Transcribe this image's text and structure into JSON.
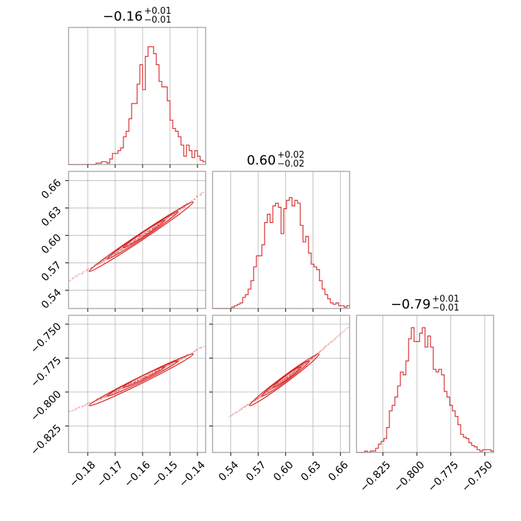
{
  "colors": {
    "accent": "#d62728",
    "grid": "#b0b0b0",
    "frame": "#808080",
    "background": "#ffffff"
  },
  "chart_data": {
    "type": "corner",
    "parameters": [
      {
        "title_value": "−0.16",
        "title_plus": "+0.01",
        "title_minus": "−0.01",
        "median": -0.16,
        "err_plus": 0.01,
        "err_minus": 0.01,
        "range": [
          -0.187,
          -0.137
        ],
        "ticks": [
          -0.18,
          -0.17,
          -0.16,
          -0.15,
          -0.14
        ],
        "tick_labels": [
          "−0.18",
          "−0.17",
          "−0.16",
          "−0.15",
          "−0.14"
        ],
        "hist_edges": [
          -0.187,
          -0.137
        ],
        "hist": [
          0,
          0,
          0,
          0,
          0,
          0,
          0,
          0,
          0,
          0,
          0.01,
          0.01,
          0.02,
          0.02,
          0.01,
          0.04,
          0.08,
          0.08,
          0.1,
          0.12,
          0.2,
          0.24,
          0.33,
          0.44,
          0.44,
          0.58,
          0.72,
          0.54,
          0.78,
          0.85,
          0.85,
          0.8,
          0.72,
          0.6,
          0.56,
          0.56,
          0.46,
          0.32,
          0.26,
          0.24,
          0.2,
          0.14,
          0.06,
          0.14,
          0.1,
          0.05,
          0.1,
          0.06,
          0.03,
          0.02
        ]
      },
      {
        "title_value": "0.60",
        "title_plus": "+0.02",
        "title_minus": "−0.02",
        "median": 0.6,
        "err_plus": 0.02,
        "err_minus": 0.02,
        "range": [
          0.52,
          0.67
        ],
        "ticks": [
          0.54,
          0.57,
          0.6,
          0.63,
          0.66
        ],
        "tick_labels": [
          "0.54",
          "0.57",
          "0.60",
          "0.63",
          "0.66"
        ],
        "hist": [
          0,
          0,
          0,
          0,
          0,
          0,
          0,
          0.01,
          0.02,
          0.03,
          0.04,
          0.08,
          0.1,
          0.14,
          0.2,
          0.3,
          0.38,
          0.38,
          0.46,
          0.62,
          0.68,
          0.62,
          0.74,
          0.76,
          0.73,
          0.54,
          0.72,
          0.78,
          0.8,
          0.74,
          0.78,
          0.76,
          0.6,
          0.48,
          0.52,
          0.4,
          0.32,
          0.3,
          0.28,
          0.2,
          0.14,
          0.1,
          0.07,
          0.04,
          0.03,
          0.04,
          0.02,
          0.02,
          0.01,
          0.02
        ]
      },
      {
        "title_value": "−0.79",
        "title_plus": "+0.01",
        "title_minus": "−0.01",
        "median": -0.79,
        "err_plus": 0.01,
        "err_minus": 0.01,
        "range": [
          -0.8445,
          -0.7435
        ],
        "ticks": [
          -0.825,
          -0.8,
          -0.775,
          -0.75
        ],
        "tick_labels": [
          "−0.825",
          "−0.800",
          "−0.775",
          "−0.750"
        ],
        "hist": [
          0,
          0,
          0,
          0.01,
          0,
          0.01,
          0.01,
          0.03,
          0.06,
          0.08,
          0.1,
          0.18,
          0.3,
          0.34,
          0.4,
          0.48,
          0.58,
          0.56,
          0.66,
          0.82,
          0.9,
          0.8,
          0.8,
          0.86,
          0.9,
          0.76,
          0.84,
          0.76,
          0.6,
          0.58,
          0.6,
          0.56,
          0.44,
          0.4,
          0.34,
          0.3,
          0.26,
          0.2,
          0.13,
          0.11,
          0.1,
          0.07,
          0.05,
          0.04,
          0.02,
          0.01,
          0.02,
          0.02,
          0.02,
          0.01
        ]
      }
    ],
    "contour_scale": [
      1.0,
      0.68,
      0.4
    ],
    "grid": true,
    "histtype": "step"
  }
}
